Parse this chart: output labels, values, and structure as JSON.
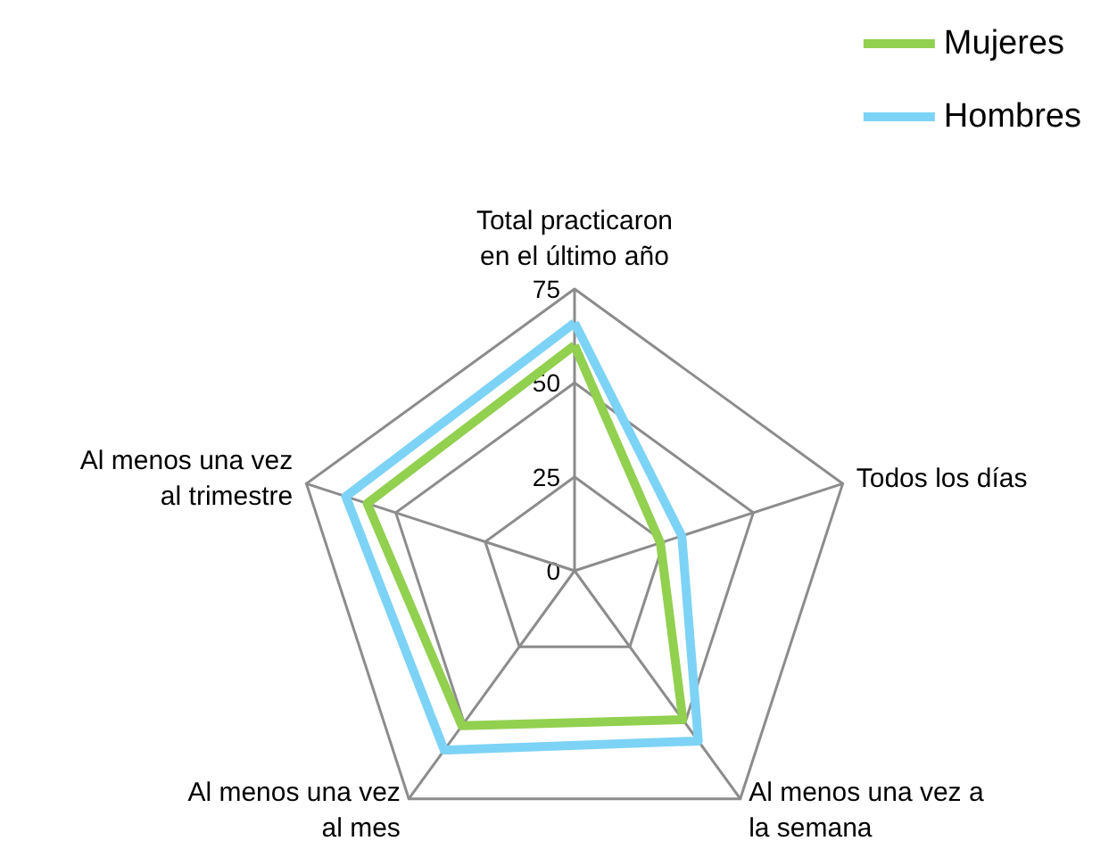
{
  "chart_data": {
    "type": "radar",
    "categories": [
      "Total practicaron\nen el último año",
      "Todos los días",
      "Al menos una vez a\nla semana",
      "Al menos una vez\nal mes",
      "Al menos una vez\nal trimestre"
    ],
    "series": [
      {
        "name": "Mujeres",
        "color": "#92d050",
        "values": [
          60,
          24,
          49,
          51,
          58
        ]
      },
      {
        "name": "Hombres",
        "color": "#7dd3f5",
        "values": [
          66,
          30,
          56,
          59,
          64
        ]
      }
    ],
    "ylim": [
      0,
      75
    ],
    "yticks": [
      0,
      25,
      50,
      75
    ],
    "legend": "top right",
    "marker": "none",
    "line_style": "solid"
  }
}
